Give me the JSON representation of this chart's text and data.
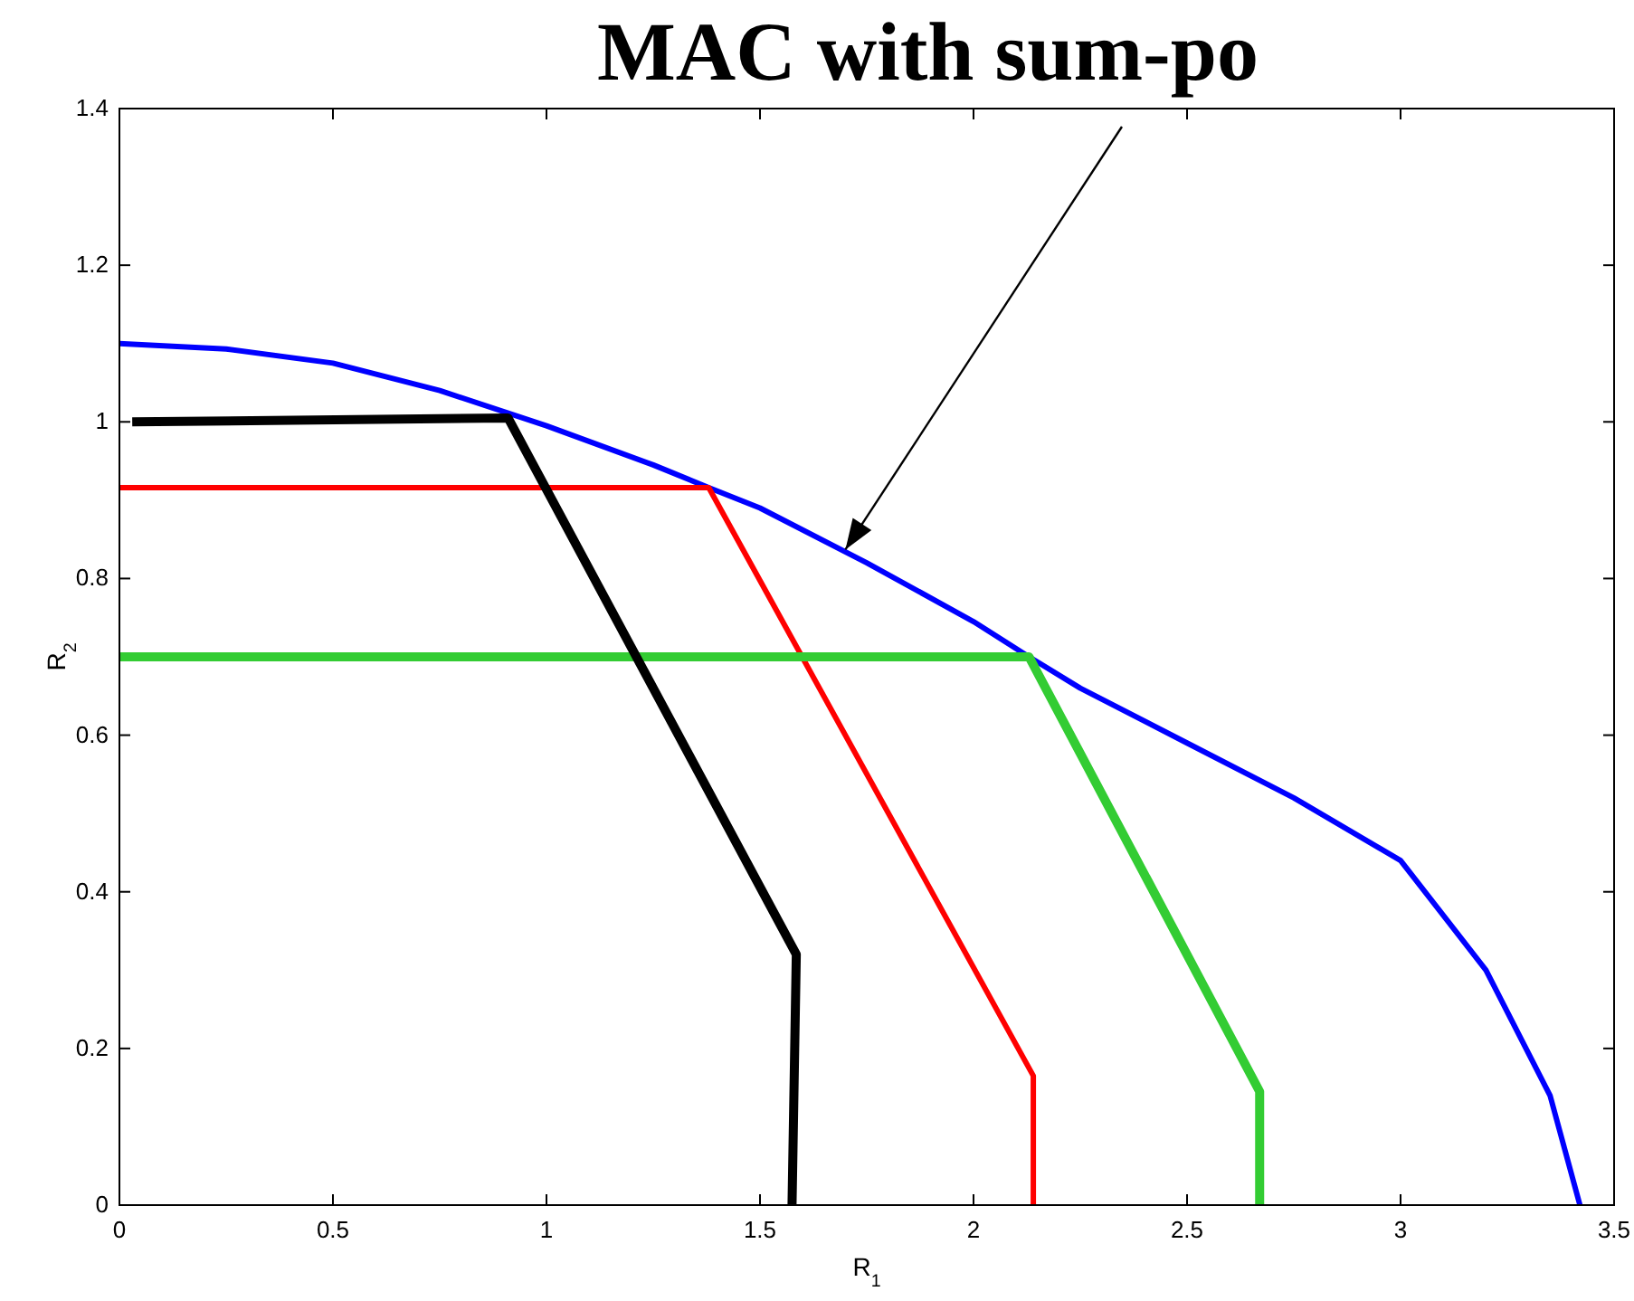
{
  "chart_data": {
    "type": "line",
    "xlabel": "R$_{1}$",
    "ylabel": "R$_{2}$",
    "xlim": [
      0,
      3.5
    ],
    "ylim": [
      0,
      1.4
    ],
    "xticks": [
      0,
      0.5,
      1,
      1.5,
      2,
      2.5,
      3,
      3.5
    ],
    "yticks": [
      0,
      0.2,
      0.4,
      0.6,
      0.8,
      1,
      1.2,
      1.4
    ],
    "grid": false,
    "line_style": "solid",
    "annotations": [
      {
        "text": "MAC with sum-po",
        "x": 1.7,
        "y": 0.83
      }
    ],
    "series": [
      {
        "color": "#0000ff",
        "x": [
          0,
          0.25,
          0.5,
          0.75,
          1,
          1.25,
          1.38,
          1.5,
          1.75,
          2,
          2.13,
          2.25,
          2.5,
          2.75,
          3,
          3.2,
          3.35,
          3.42
        ],
        "values": [
          1.1,
          1.093,
          1.075,
          1.04,
          0.995,
          0.945,
          0.916,
          0.89,
          0.82,
          0.745,
          0.7,
          0.66,
          0.59,
          0.52,
          0.44,
          0.3,
          0.14,
          0
        ]
      },
      {
        "color": "#ff0000",
        "x": [
          0,
          1.38,
          2.14,
          2.14
        ],
        "values": [
          0.916,
          0.916,
          0.165,
          0
        ]
      },
      {
        "color": "#33cc33",
        "x": [
          0,
          2.13,
          2.67,
          2.67
        ],
        "values": [
          0.7,
          0.7,
          0.145,
          0
        ]
      },
      {
        "color": "#000000",
        "x": [
          0.03,
          0.91,
          1.585,
          1.575
        ],
        "values": [
          1.0,
          1.005,
          0.32,
          0
        ]
      }
    ]
  }
}
